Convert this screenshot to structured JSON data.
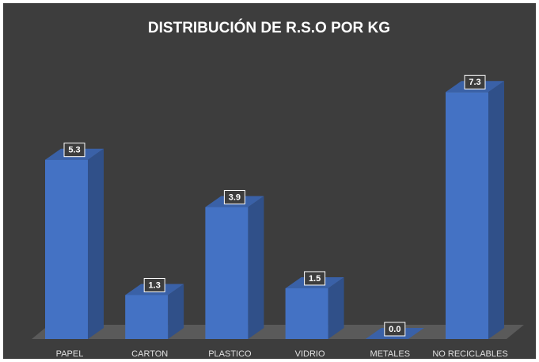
{
  "chart_data": {
    "type": "bar3d",
    "title": "DISTRIBUCIÓN DE R.S.O  POR KG",
    "categories": [
      "PAPEL",
      "CARTON",
      "PLASTICO",
      "VIDRIO",
      "METALES",
      "NO RECICLABLES"
    ],
    "values": [
      5.3,
      1.3,
      3.9,
      1.5,
      0.0,
      7.3
    ],
    "value_labels": [
      "5.3",
      "1.3",
      "3.9",
      "1.5",
      "0.0",
      "7.3"
    ],
    "color": "#4472c4"
  }
}
